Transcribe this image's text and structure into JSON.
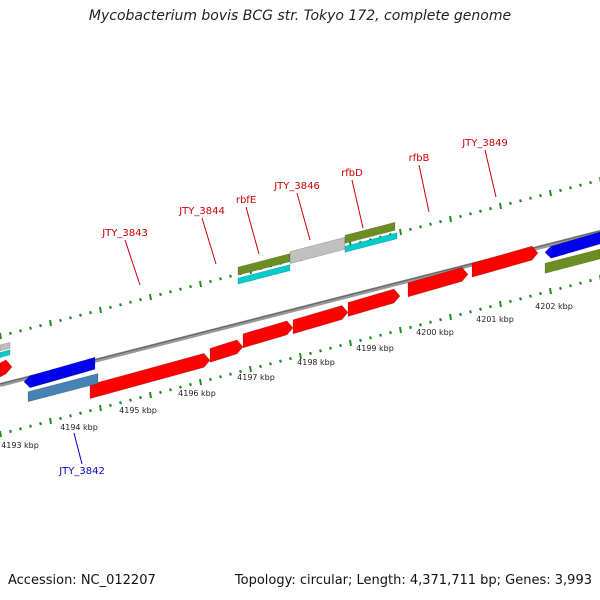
{
  "title": "Mycobacterium bovis BCG str. Tokyo 172, complete genome",
  "footer": {
    "accession": "Accession: NC_012207",
    "summary": "Topology: circular; Length: 4,371,711 bp; Genes: 3,993"
  },
  "colors": {
    "label_red": "#cc0000",
    "label_blue": "#0000cc",
    "gene_red": "#ff0000",
    "gene_blue": "#0000ee",
    "gene_olive": "#6b8e23",
    "gene_cyan": "#00cccc",
    "gene_gray": "#c0c0c0",
    "gene_steel": "#4682b4",
    "tick_green": "#228b22",
    "backbone": "#888888"
  },
  "kbp_labels": [
    "4193 kbp",
    "4194 kbp",
    "4195 kbp",
    "4196 kbp",
    "4197 kbp",
    "4198 kbp",
    "4199 kbp",
    "4200 kbp",
    "4201 kbp",
    "4202 kbp"
  ],
  "gene_labels": [
    {
      "text": "JTY_3843",
      "color": "red"
    },
    {
      "text": "JTY_3844",
      "color": "red"
    },
    {
      "text": "rbfE",
      "color": "red"
    },
    {
      "text": "JTY_3846",
      "color": "red"
    },
    {
      "text": "rfbD",
      "color": "red"
    },
    {
      "text": "rfbB",
      "color": "red"
    },
    {
      "text": "JTY_3849",
      "color": "red"
    },
    {
      "text": "JTY_3842",
      "color": "blue"
    }
  ]
}
